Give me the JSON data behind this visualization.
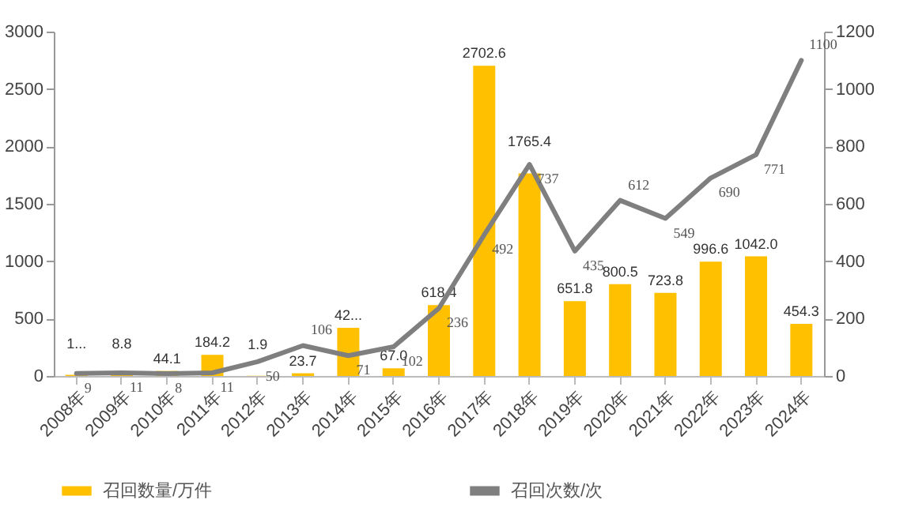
{
  "chart_data": {
    "type": "bar",
    "categories": [
      "2008年",
      "2009年",
      "2010年",
      "2011年",
      "2012年",
      "2013年",
      "2014年",
      "2015年",
      "2016年",
      "2017年",
      "2018年",
      "2019年",
      "2020年",
      "2021年",
      "2022年",
      "2023年",
      "2024年"
    ],
    "series": [
      {
        "name": "召回数量/万件",
        "color": "#ffc000",
        "values": [
          10,
          8.8,
          44.1,
          184.2,
          1.9,
          23.7,
          420,
          67.0,
          618.4,
          2702.6,
          1765.4,
          651.8,
          800.5,
          723.8,
          996.6,
          1042.0,
          454.3
        ],
        "value_labels": [
          "1...",
          "8.8",
          "44.1",
          "184.2",
          "1.9",
          "23.7",
          "42...",
          "67.0",
          "618.4",
          "2702.6",
          "1765.4",
          "651.8",
          "800.5",
          "723.8",
          "996.6",
          "1042.0",
          "454.3"
        ]
      },
      {
        "name": "召回次数/次",
        "type": "line",
        "axis": "y2",
        "color": "#7f7f7f",
        "values": [
          9,
          11,
          8,
          11,
          50,
          106,
          71,
          102,
          236,
          492,
          737,
          435,
          612,
          549,
          690,
          771,
          1100
        ],
        "value_labels": [
          "9",
          "11",
          "8",
          "11",
          "50",
          "106",
          "71",
          "102",
          "236",
          "492",
          "737",
          "435",
          "612",
          "549",
          "690",
          "771",
          "1100"
        ]
      }
    ],
    "ylim": [
      0,
      3000
    ],
    "yticks": [
      0,
      500,
      1000,
      1500,
      2000,
      2500,
      3000
    ],
    "y2lim": [
      0,
      1200
    ],
    "y2ticks": [
      0,
      200,
      400,
      600,
      800,
      1000,
      1200
    ],
    "grid": false,
    "legend": "bottom",
    "marker": "none",
    "line_style": "solid"
  }
}
